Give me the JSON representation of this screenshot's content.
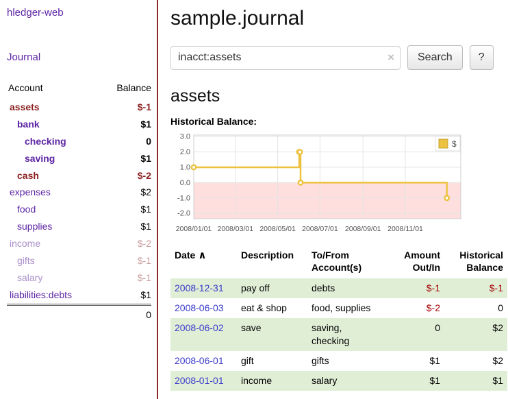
{
  "app": {
    "brand": "hledger-web",
    "nav_journal": "Journal"
  },
  "sidebar": {
    "header": {
      "account": "Account",
      "balance": "Balance"
    },
    "accounts": [
      {
        "name": "assets",
        "balance": "$-1",
        "indent": 0,
        "style": "neg-strong"
      },
      {
        "name": "bank",
        "balance": "$1",
        "indent": 1,
        "style": "strong"
      },
      {
        "name": "checking",
        "balance": "0",
        "indent": 2,
        "style": "strong"
      },
      {
        "name": "saving",
        "balance": "$1",
        "indent": 2,
        "style": "strong"
      },
      {
        "name": "cash",
        "balance": "$-2",
        "indent": 1,
        "style": "neg-strong"
      },
      {
        "name": "expenses",
        "balance": "$2",
        "indent": 0,
        "style": "normal"
      },
      {
        "name": "food",
        "balance": "$1",
        "indent": 1,
        "style": "normal"
      },
      {
        "name": "supplies",
        "balance": "$1",
        "indent": 1,
        "style": "normal"
      },
      {
        "name": "income",
        "balance": "$-2",
        "indent": 0,
        "style": "faded"
      },
      {
        "name": "gifts",
        "balance": "$-1",
        "indent": 1,
        "style": "faded"
      },
      {
        "name": "salary",
        "balance": "$-1",
        "indent": 1,
        "style": "faded"
      },
      {
        "name": "liabilities:debts",
        "balance": "$1",
        "indent": 0,
        "style": "normal"
      }
    ],
    "total": "0"
  },
  "main": {
    "title": "sample.journal",
    "search": {
      "value": "inacct:assets",
      "clear_icon": "×",
      "button": "Search",
      "help": "?"
    },
    "account_heading": "assets",
    "chart_label": "Historical Balance:"
  },
  "chart_data": {
    "type": "line",
    "title": "Historical Balance",
    "legend_position": "top-right",
    "line_color": "#edc240",
    "marker_fill": "#ffffff",
    "negative_fill": "#ffdede",
    "grid": true,
    "xlim": [
      "2008-01-01",
      "2009-01-20"
    ],
    "ylim": [
      -2.35,
      3.1
    ],
    "y_ticks": [
      "3.0",
      "2.0",
      "1.0",
      "0.0",
      "-1.0",
      "-2.0"
    ],
    "x_ticks": [
      {
        "date": "2008-01-01",
        "label": "2008/01/01"
      },
      {
        "date": "2008-03-01",
        "label": "2008/03/01"
      },
      {
        "date": "2008-05-01",
        "label": "2008/05/01"
      },
      {
        "date": "2008-07-01",
        "label": "2008/07/01"
      },
      {
        "date": "2008-09-01",
        "label": "2008/09/01"
      },
      {
        "date": "2008-11-01",
        "label": "2008/11/01"
      }
    ],
    "series": [
      {
        "name": "$",
        "points": [
          [
            "2008-01-01",
            1
          ],
          [
            "2008-06-01",
            2
          ],
          [
            "2008-06-02",
            2
          ],
          [
            "2008-06-03",
            0
          ],
          [
            "2008-12-31",
            -1
          ]
        ]
      }
    ]
  },
  "table": {
    "headers": {
      "date": "Date",
      "sort_asc": "∧",
      "description": "Description",
      "accounts1": "To/From",
      "accounts2": "Account(s)",
      "amount1": "Amount",
      "amount2": "Out/In",
      "balance1": "Historical",
      "balance2": "Balance"
    },
    "rows": [
      {
        "date": "2008-12-31",
        "description": "pay off",
        "accounts": "debts",
        "amount": "$-1",
        "balance": "$-1",
        "amount_neg": true,
        "balance_neg": true
      },
      {
        "date": "2008-06-03",
        "description": "eat & shop",
        "accounts": "food, supplies",
        "amount": "$-2",
        "balance": "0",
        "amount_neg": true,
        "balance_neg": false
      },
      {
        "date": "2008-06-02",
        "description": "save",
        "accounts": "saving,\nchecking",
        "amount": "0",
        "balance": "$2",
        "amount_neg": false,
        "balance_neg": false
      },
      {
        "date": "2008-06-01",
        "description": "gift",
        "accounts": "gifts",
        "amount": "$1",
        "balance": "$2",
        "amount_neg": false,
        "balance_neg": false
      },
      {
        "date": "2008-01-01",
        "description": "income",
        "accounts": "salary",
        "amount": "$1",
        "balance": "$1",
        "amount_neg": false,
        "balance_neg": false
      }
    ]
  }
}
